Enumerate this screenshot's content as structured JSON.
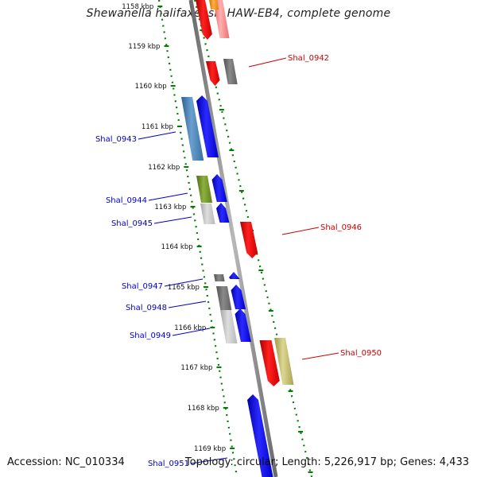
{
  "title": "Shewanella halifaxensis HAW-EB4, complete genome",
  "footer": {
    "accession": "Accession: NC_010334",
    "summary": "Topology: circular; Length: 5,226,917 bp; Genes: 4,433"
  },
  "ticks": [
    "1158 kbp",
    "1159 kbp",
    "1160 kbp",
    "1161 kbp",
    "1162 kbp",
    "1163 kbp",
    "1164 kbp",
    "1165 kbp",
    "1166 kbp",
    "1167 kbp",
    "1168 kbp",
    "1169 kbp"
  ],
  "genes": [
    {
      "name": "Shal_0942",
      "strand": "forward",
      "color": "#cc0000"
    },
    {
      "name": "Shal_0943",
      "strand": "reverse",
      "color": "#0000cc"
    },
    {
      "name": "Shal_0944",
      "strand": "reverse",
      "color": "#0000cc"
    },
    {
      "name": "Shal_0945",
      "strand": "reverse",
      "color": "#0000cc"
    },
    {
      "name": "Shal_0946",
      "strand": "forward",
      "color": "#cc0000"
    },
    {
      "name": "Shal_0947",
      "strand": "reverse",
      "color": "#0000cc"
    },
    {
      "name": "Shal_0948",
      "strand": "reverse",
      "color": "#0000cc"
    },
    {
      "name": "Shal_0949",
      "strand": "reverse",
      "color": "#0000cc"
    },
    {
      "name": "Shal_0950",
      "strand": "forward",
      "color": "#cc0000"
    },
    {
      "name": "Shal_0951",
      "strand": "reverse",
      "color": "#0000cc"
    }
  ],
  "colors": {
    "forward_cds": "#ff0000",
    "reverse_cds": "#0000ff",
    "backbone": "#808080",
    "tick_dots": "#008000",
    "cog_gray": "#707070",
    "cog_blue": "#4682b4",
    "cog_green": "#6b8e23",
    "cog_olive": "#bdb76b",
    "cog_pink": "#f08080",
    "cog_orange": "#ff8c00",
    "cog_light": "#c0c0c0"
  }
}
